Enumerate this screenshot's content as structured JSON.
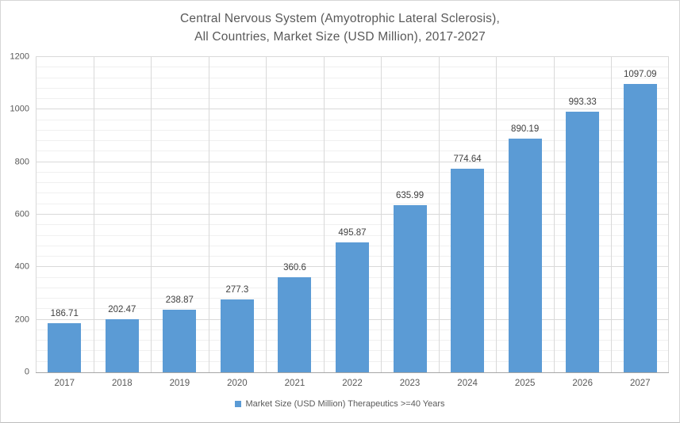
{
  "title": {
    "line1": "Central Nervous System (Amyotrophic Lateral Sclerosis),",
    "line2": "All Countries, Market Size (USD Million), 2017-2027"
  },
  "legend": {
    "label": "Market Size (USD Million) Therapeutics >=40 Years"
  },
  "chart_data": {
    "type": "bar",
    "title": "Central Nervous System (Amyotrophic Lateral Sclerosis), All Countries, Market Size (USD Million), 2017-2027",
    "categories": [
      "2017",
      "2018",
      "2019",
      "2020",
      "2021",
      "2022",
      "2023",
      "2024",
      "2025",
      "2026",
      "2027"
    ],
    "series": [
      {
        "name": "Market Size (USD Million) Therapeutics >=40 Years",
        "values": [
          186.71,
          202.47,
          238.87,
          277.3,
          360.6,
          495.87,
          635.99,
          774.64,
          890.19,
          993.33,
          1097.09
        ]
      }
    ],
    "value_labels": [
      "186.71",
      "202.47",
      "238.87",
      "277.3",
      "360.6",
      "495.87",
      "635.99",
      "774.64",
      "890.19",
      "993.33",
      "1097.09"
    ],
    "xlabel": "",
    "ylabel": "",
    "ylim": [
      0,
      1200
    ],
    "y_major_step": 200,
    "y_minor_step": 40,
    "y_tick_labels": [
      "0",
      "200",
      "400",
      "600",
      "800",
      "1000",
      "1200"
    ],
    "grid": true,
    "legend_position": "bottom"
  },
  "colors": {
    "bar": "#5B9BD5",
    "title_text": "#595959",
    "tick_text": "#595959",
    "data_label_text": "#404040",
    "gridline_major": "#D9D9D9",
    "gridline_minor": "#F0F0F0",
    "axis_line": "#A6A6A6",
    "frame_border": "#D6D6D6"
  }
}
